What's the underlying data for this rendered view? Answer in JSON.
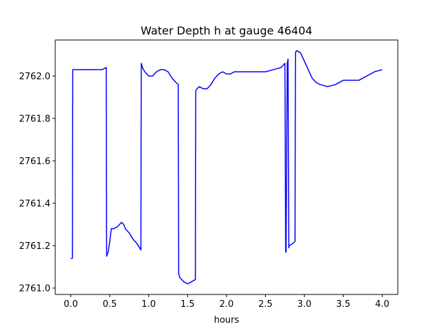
{
  "chart_data": {
    "type": "line",
    "title": "Water Depth h at gauge 46404",
    "xlabel": "hours",
    "ylabel": "",
    "xlim": [
      -0.2,
      4.2
    ],
    "ylim": [
      2760.97,
      2762.17
    ],
    "xticks": [
      0.0,
      0.5,
      1.0,
      1.5,
      2.0,
      2.5,
      3.0,
      3.5,
      4.0
    ],
    "xtick_labels": [
      "0.0",
      "0.5",
      "1.0",
      "1.5",
      "2.0",
      "2.5",
      "3.0",
      "3.5",
      "4.0"
    ],
    "yticks": [
      2761.0,
      2761.2,
      2761.4,
      2761.6,
      2761.8,
      2762.0
    ],
    "ytick_labels": [
      "2761.0",
      "2761.2",
      "2761.4",
      "2761.6",
      "2761.8",
      "2762.0"
    ],
    "grid": false,
    "series": [
      {
        "color": "#0000ff",
        "x": [
          0.0,
          0.02,
          0.025,
          0.1,
          0.2,
          0.3,
          0.4,
          0.455,
          0.46,
          0.48,
          0.5,
          0.52,
          0.55,
          0.6,
          0.65,
          0.68,
          0.7,
          0.75,
          0.8,
          0.85,
          0.9,
          0.905,
          0.92,
          0.95,
          1.0,
          1.05,
          1.1,
          1.15,
          1.2,
          1.25,
          1.3,
          1.35,
          1.38,
          1.385,
          1.4,
          1.45,
          1.5,
          1.55,
          1.6,
          1.605,
          1.62,
          1.65,
          1.7,
          1.75,
          1.8,
          1.85,
          1.9,
          1.95,
          2.0,
          2.05,
          2.1,
          2.15,
          2.2,
          2.3,
          2.4,
          2.5,
          2.6,
          2.7,
          2.75,
          2.76,
          2.765,
          2.78,
          2.79,
          2.8,
          2.805,
          2.85,
          2.88,
          2.885,
          2.9,
          2.95,
          3.0,
          3.05,
          3.1,
          3.15,
          3.2,
          3.3,
          3.4,
          3.5,
          3.6,
          3.7,
          3.8,
          3.9,
          4.0
        ],
        "y": [
          2761.14,
          2761.14,
          2762.03,
          2762.03,
          2762.03,
          2762.03,
          2762.03,
          2762.04,
          2761.15,
          2761.17,
          2761.22,
          2761.28,
          2761.28,
          2761.29,
          2761.31,
          2761.3,
          2761.28,
          2761.26,
          2761.23,
          2761.21,
          2761.18,
          2762.06,
          2762.04,
          2762.02,
          2762.0,
          2762.0,
          2762.02,
          2762.03,
          2762.03,
          2762.02,
          2761.99,
          2761.97,
          2761.96,
          2761.07,
          2761.05,
          2761.03,
          2761.02,
          2761.03,
          2761.04,
          2761.93,
          2761.94,
          2761.95,
          2761.94,
          2761.94,
          2761.96,
          2761.99,
          2762.01,
          2762.02,
          2762.01,
          2762.01,
          2762.02,
          2762.02,
          2762.02,
          2762.02,
          2762.02,
          2762.02,
          2762.03,
          2762.04,
          2762.06,
          2761.17,
          2761.17,
          2762.06,
          2762.08,
          2761.19,
          2761.2,
          2761.21,
          2761.22,
          2762.11,
          2762.12,
          2762.11,
          2762.07,
          2762.03,
          2761.99,
          2761.97,
          2761.96,
          2761.95,
          2761.96,
          2761.98,
          2761.98,
          2761.98,
          2762.0,
          2762.02,
          2762.03
        ]
      }
    ]
  }
}
